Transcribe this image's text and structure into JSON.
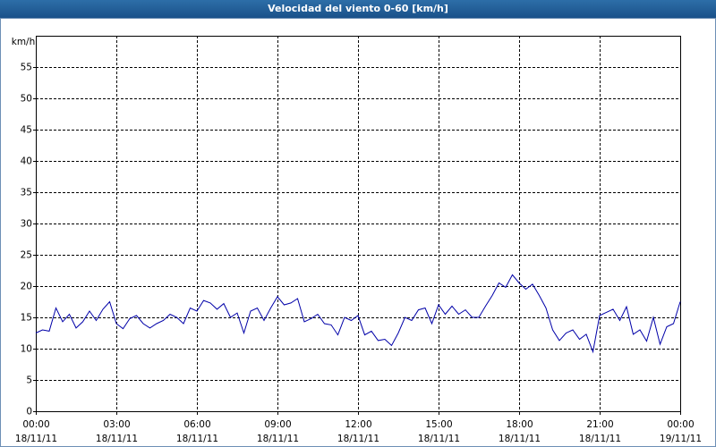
{
  "chart_data": {
    "type": "line",
    "title": "Velocidad del viento 0-60 [km/h]",
    "ylabel": "km/h",
    "x": [
      0,
      0.25,
      0.5,
      0.75,
      1,
      1.25,
      1.5,
      1.75,
      2,
      2.25,
      2.5,
      2.75,
      3,
      3.25,
      3.5,
      3.75,
      4,
      4.25,
      4.5,
      4.75,
      5,
      5.25,
      5.5,
      5.75,
      6,
      6.25,
      6.5,
      6.75,
      7,
      7.25,
      7.5,
      7.75,
      8,
      8.25,
      8.5,
      8.75,
      9,
      9.25,
      9.5,
      9.75,
      10,
      10.25,
      10.5,
      10.75,
      11,
      11.25,
      11.5,
      11.75,
      12,
      12.25,
      12.5,
      12.75,
      13,
      13.25,
      13.5,
      13.75,
      14,
      14.25,
      14.5,
      14.75,
      15,
      15.25,
      15.5,
      15.75,
      16,
      16.25,
      16.5,
      16.75,
      17,
      17.25,
      17.5,
      17.75,
      18,
      18.25,
      18.5,
      18.75,
      19,
      19.25,
      19.5,
      19.75,
      20,
      20.25,
      20.5,
      20.75,
      21,
      21.25,
      21.5,
      21.75,
      22,
      22.25,
      22.5,
      22.75,
      23,
      23.25,
      23.5,
      23.75,
      24
    ],
    "series": [
      {
        "name": "Velocidad del viento",
        "color": "#0000a8",
        "values": [
          12.5,
          13,
          12.8,
          16.5,
          14.3,
          15.5,
          13.3,
          14.3,
          16,
          14.5,
          16.3,
          17.5,
          14,
          13.2,
          14.8,
          15.3,
          14,
          13.3,
          14,
          14.5,
          15.5,
          15,
          14,
          16.5,
          16,
          17.7,
          17.3,
          16.3,
          17.2,
          15,
          15.7,
          12.5,
          16,
          16.5,
          14.5,
          16.5,
          18.3,
          17,
          17.3,
          18,
          14.3,
          14.8,
          15.5,
          14,
          13.8,
          12.2,
          15,
          14.5,
          15.3,
          12.2,
          12.8,
          11.3,
          11.5,
          10.5,
          12.5,
          15,
          14.5,
          16.2,
          16.5,
          14,
          17,
          15.5,
          16.8,
          15.5,
          16.2,
          15,
          15,
          16.8,
          18.5,
          20.5,
          19.8,
          21.8,
          20.5,
          19.5,
          20.3,
          18.5,
          16.5,
          13,
          11.3,
          12.5,
          13,
          11.5,
          12.3,
          9.5,
          15.3,
          15.8,
          16.3,
          14.5,
          16.7,
          12.3,
          13,
          11.2,
          15,
          10.7,
          13.5,
          14,
          17.5
        ]
      }
    ],
    "xlim": [
      0,
      24
    ],
    "xticks": [
      {
        "value": 0,
        "label": "00:00"
      },
      {
        "value": 3,
        "label": "03:00"
      },
      {
        "value": 6,
        "label": "06:00"
      },
      {
        "value": 9,
        "label": "09:00"
      },
      {
        "value": 12,
        "label": "12:00"
      },
      {
        "value": 15,
        "label": "15:00"
      },
      {
        "value": 18,
        "label": "18:00"
      },
      {
        "value": 21,
        "label": "21:00"
      },
      {
        "value": 24,
        "label": "00:00"
      }
    ],
    "xtick_dates": [
      "18/11/11",
      "18/11/11",
      "18/11/11",
      "18/11/11",
      "18/11/11",
      "18/11/11",
      "18/11/11",
      "18/11/11",
      "19/11/11"
    ],
    "ylim": [
      0,
      60
    ],
    "yticks": [
      0,
      5,
      10,
      15,
      20,
      25,
      30,
      35,
      40,
      45,
      50,
      55
    ],
    "grid": true
  }
}
